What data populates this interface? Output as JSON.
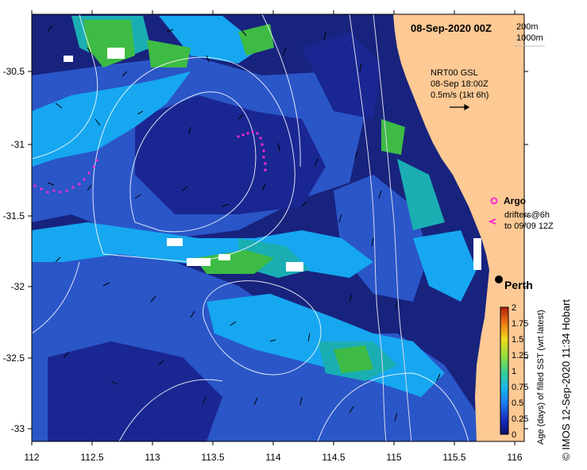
{
  "map": {
    "date_title": "08-Sep-2020 00Z",
    "depth_legend": [
      "200m",
      "1000m"
    ],
    "current_legend": {
      "lines": [
        "NRT00 GSL",
        "08-Sep 18:00Z",
        "0.5m/s (1kt 6h)"
      ]
    },
    "argo_label": "Argo",
    "drifters_label_lines": [
      "drifters@6h",
      "to 09/09 12Z"
    ],
    "city_label": "Perth",
    "lon_ticks": [
      "112",
      "112.5",
      "113",
      "113.5",
      "114",
      "114.5",
      "115",
      "115.5",
      "116"
    ],
    "lat_ticks": [
      "-30.5",
      "-31",
      "-31.5",
      "-32",
      "-32.5",
      "-33"
    ],
    "lon_range": [
      112,
      116
    ],
    "lat_range": [
      -33.1,
      -30.1
    ],
    "colorbar": {
      "title": "Age (days) of filled SST (wrt latest)",
      "ticks": [
        "2",
        "1.75",
        "1.5",
        "1.25",
        "1",
        "0.75",
        "0.5",
        "0.25",
        "0"
      ],
      "range": [
        0,
        2
      ]
    },
    "credit": "© IMOS 12-Sep-2020 11:34 Hobart",
    "colors": {
      "land": "#fdc995",
      "deep_ocean": "#18237e",
      "mid_blue": "#2a56c8",
      "light_blue": "#16a7f0",
      "teal": "#1aaeb3",
      "green": "#3dbb45",
      "argo_magenta": "#ff2bd0"
    }
  }
}
